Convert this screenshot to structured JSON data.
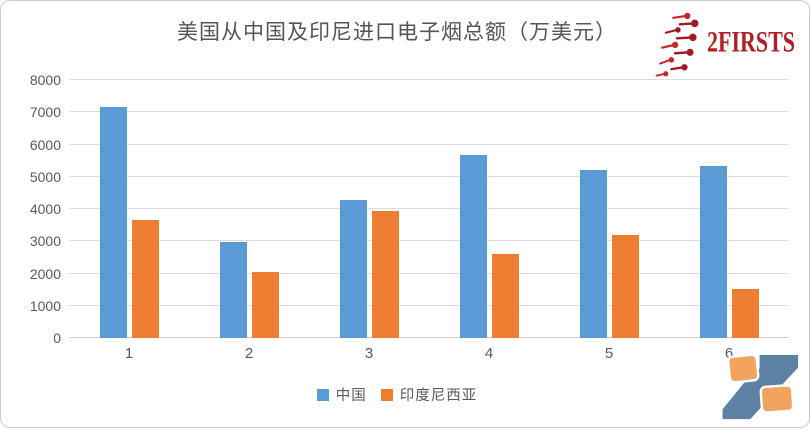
{
  "header": {
    "title": "美国从中国及印尼进口电子烟总额（万美元）",
    "brand_wordmark": "2FIRSTS"
  },
  "chart_data": {
    "type": "bar",
    "title": "美国从中国及印尼进口电子烟总额（万美元）",
    "categories": [
      "1",
      "2",
      "3",
      "4",
      "5",
      "6"
    ],
    "series": [
      {
        "key": "china",
        "name": "中国",
        "color": "#5B9BD5",
        "values": [
          7150,
          2990,
          4270,
          5680,
          5200,
          5330
        ]
      },
      {
        "key": "indonesia",
        "name": "印度尼西亚",
        "color": "#ED7D31",
        "values": [
          3650,
          2050,
          3930,
          2620,
          3190,
          1520
        ]
      }
    ],
    "xlabel": "",
    "ylabel": "",
    "ylim": [
      0,
      8000
    ],
    "ytick_step": 1000,
    "yticks": [
      0,
      1000,
      2000,
      3000,
      4000,
      5000,
      6000,
      7000,
      8000
    ],
    "grid": "horizontal",
    "legend_position": "bottom"
  },
  "colors": {
    "grid": "#DCDCDC",
    "axis_text": "#595959",
    "title_text": "#555555",
    "brand_red": "#B01E24",
    "logo_blue": "#5C81A5",
    "logo_orange": "#F2A45F",
    "card_border": "#C9CDCD"
  }
}
